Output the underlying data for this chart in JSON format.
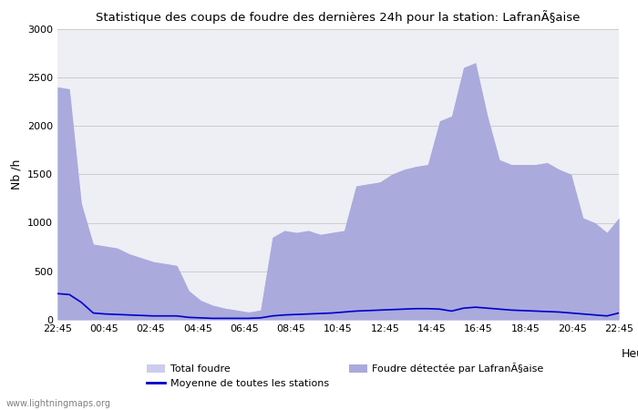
{
  "title": "Statistique des coups de foudre des dernières 24h pour la station: LafranÃ§aise",
  "ylabel": "Nb /h",
  "xlabel_right": "Heure",
  "watermark": "www.lightningmaps.org",
  "ylim": [
    0,
    3000
  ],
  "yticks": [
    0,
    500,
    1000,
    1500,
    2000,
    2500,
    3000
  ],
  "xtick_labels": [
    "22:45",
    "00:45",
    "02:45",
    "04:45",
    "06:45",
    "08:45",
    "10:45",
    "12:45",
    "14:45",
    "16:45",
    "18:45",
    "20:45",
    "22:45"
  ],
  "total_foudre": [
    2400,
    2380,
    1200,
    780,
    760,
    740,
    680,
    640,
    600,
    580,
    560,
    300,
    200,
    150,
    120,
    100,
    80,
    100,
    850,
    920,
    900,
    920,
    880,
    900,
    920,
    1380,
    1400,
    1420,
    1500,
    1550,
    1580,
    1600,
    2050,
    2100,
    2600,
    2650,
    2100,
    1650,
    1600,
    1600,
    1600,
    1620,
    1550,
    1500,
    1050,
    1000,
    900,
    1050
  ],
  "local_foudre": [
    2400,
    2380,
    1200,
    780,
    760,
    740,
    680,
    640,
    600,
    580,
    560,
    300,
    200,
    150,
    120,
    100,
    80,
    100,
    850,
    920,
    900,
    920,
    880,
    900,
    920,
    1380,
    1400,
    1420,
    1500,
    1550,
    1580,
    1600,
    2050,
    2100,
    2600,
    2650,
    2100,
    1650,
    1600,
    1600,
    1600,
    1620,
    1550,
    1500,
    1050,
    1000,
    900,
    1050
  ],
  "moyenne": [
    270,
    260,
    180,
    70,
    60,
    55,
    50,
    45,
    40,
    40,
    40,
    25,
    20,
    15,
    15,
    15,
    15,
    20,
    40,
    50,
    55,
    60,
    65,
    70,
    80,
    90,
    95,
    100,
    105,
    110,
    115,
    115,
    110,
    90,
    120,
    130,
    120,
    110,
    100,
    95,
    90,
    85,
    80,
    70,
    60,
    50,
    40,
    70
  ],
  "bg_color": "#eeeef5",
  "fill_total_color": "#ccccee",
  "fill_local_color": "#aaaadd",
  "line_color": "#0000cc",
  "grid_color": "#cccccc",
  "legend_total": "Total foudre",
  "legend_moyenne": "Moyenne de toutes les stations",
  "legend_local": "Foudre détectée par LafranÃ§aise"
}
